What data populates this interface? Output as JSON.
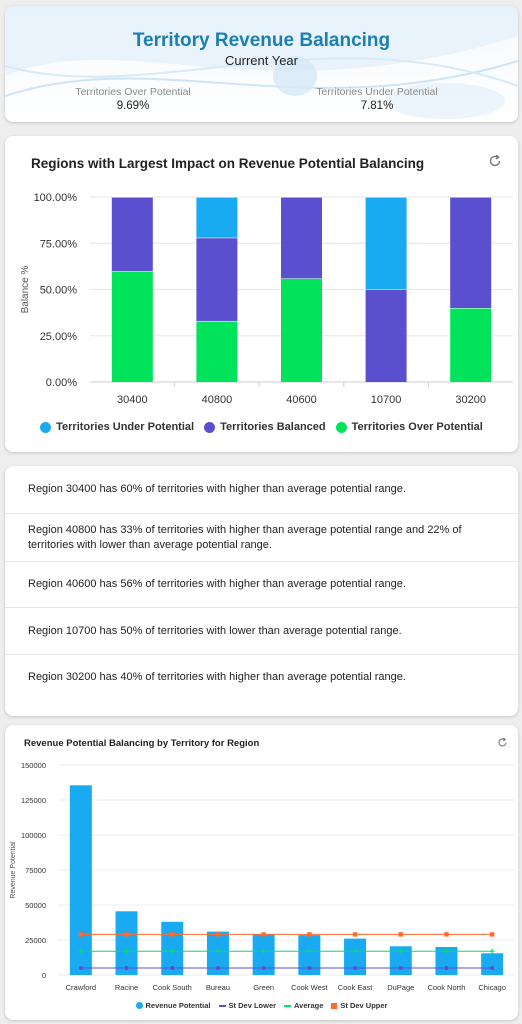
{
  "header": {
    "title": "Territory Revenue Balancing",
    "subtitle": "Current Year",
    "stats": [
      {
        "label": "Territories Over Potential",
        "value": "9.69%"
      },
      {
        "label": "Territories Under Potential",
        "value": "7.81%"
      }
    ]
  },
  "colors": {
    "under": "#19aaf2",
    "balanced": "#5a4fcf",
    "over": "#00e35a",
    "bar2": "#19aaf2",
    "stdLower": "#5a4fcf",
    "average": "#00e35a",
    "stdUpper": "#ff6a2c",
    "title": "#1b7fb0"
  },
  "chart1": {
    "title": "Regions with Largest Impact on Revenue Potential Balancing",
    "chart_data": {
      "type": "bar",
      "stacked": true,
      "categories": [
        "30400",
        "40800",
        "40600",
        "10700",
        "30200"
      ],
      "ylabel": "Balance %",
      "ylim": [
        0,
        100
      ],
      "yticks": [
        "0.00%",
        "25.00%",
        "50.00%",
        "75.00%",
        "100.00%"
      ],
      "series": [
        {
          "name": "Territories Over Potential",
          "key": "over",
          "values": [
            60,
            33,
            56,
            0,
            40
          ]
        },
        {
          "name": "Territories Balanced",
          "key": "balanced",
          "values": [
            40,
            45,
            44,
            50,
            60
          ]
        },
        {
          "name": "Territories Under Potential",
          "key": "under",
          "values": [
            0,
            22,
            0,
            50,
            0
          ]
        }
      ],
      "legend": [
        "Territories Under Potential",
        "Territories Balanced",
        "Territories Over Potential"
      ],
      "legend_position": "bottom"
    }
  },
  "regions": [
    "Region 30400 has 60% of territories with higher than average potential range.",
    "Region 40800 has 33% of territories with higher than average potential range and 22% of territories with lower than average potential range.",
    "Region 40600 has 56% of territories with higher than average potential range.",
    "Region 10700 has 50% of territories with lower than average potential range.",
    "Region 30200 has 40% of territories with higher than average potential range."
  ],
  "chart2": {
    "title": "Revenue Potential Balancing by Territory for Region",
    "chart_data": {
      "type": "bar",
      "categories": [
        "Crawford",
        "Racine",
        "Cook South",
        "Bureau",
        "Green",
        "Cook West",
        "Cook East",
        "DuPage",
        "Cook North",
        "Chicago"
      ],
      "ylabel": "Revenue Potential",
      "ylim": [
        0,
        150000
      ],
      "yticks": [
        "0",
        "25000",
        "50000",
        "75000",
        "100000",
        "125000",
        "150000"
      ],
      "series": [
        {
          "name": "Revenue Potential",
          "type": "bar",
          "values": [
            135500,
            45500,
            38000,
            31000,
            29000,
            28500,
            26000,
            20500,
            20000,
            15500
          ]
        },
        {
          "name": "St Dev Lower",
          "type": "line",
          "values": [
            5000,
            5000,
            5000,
            5000,
            5000,
            5000,
            5000,
            5000,
            5000,
            5000
          ]
        },
        {
          "name": "Average",
          "type": "line",
          "values": [
            17000,
            17000,
            17000,
            17000,
            17000,
            17000,
            17000,
            17000,
            17000,
            17000
          ]
        },
        {
          "name": "St Dev Upper",
          "type": "line",
          "values": [
            29000,
            29000,
            29000,
            29000,
            29000,
            29000,
            29000,
            29000,
            29000,
            29000
          ]
        }
      ],
      "legend_position": "bottom"
    }
  }
}
